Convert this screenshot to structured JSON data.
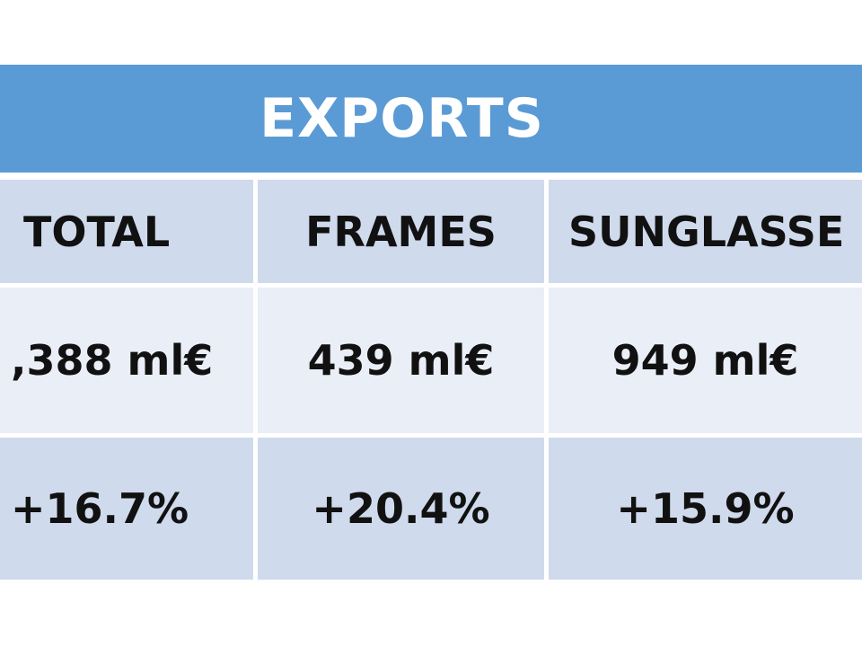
{
  "header": {
    "title": "EXPORTS"
  },
  "table": {
    "rows": [
      [
        "TOTAL",
        "FRAMES",
        "SUNGLASSE"
      ],
      [
        ",388 ml€",
        "439 ml€",
        "949 ml€"
      ],
      [
        "+16.7%",
        "+20.4%",
        "+15.9%"
      ]
    ]
  }
}
